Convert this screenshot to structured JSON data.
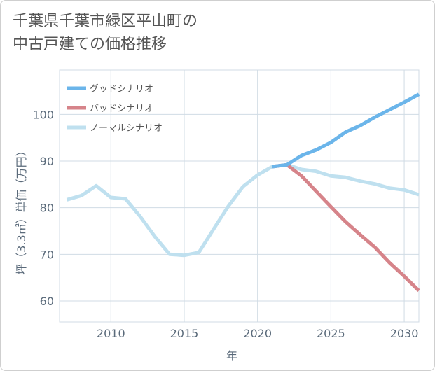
{
  "title_line1": "千葉県千葉市緑区平山町の",
  "title_line2": "中古戸建ての価格推移",
  "chart_data": {
    "type": "line",
    "xlabel": "年",
    "ylabel": "坪（3.3㎡）単価（万円）",
    "xlim": [
      2006.5,
      2031
    ],
    "ylim": [
      55.5,
      109.5
    ],
    "xticks": [
      2010,
      2015,
      2020,
      2025,
      2030
    ],
    "yticks": [
      60,
      70,
      80,
      90,
      100
    ],
    "grid": true,
    "legend_position": "top-left",
    "series": [
      {
        "name": "グッドシナリオ",
        "color": "#6bb5ea",
        "x": [
          2021,
          2022,
          2023,
          2024,
          2025,
          2026,
          2027,
          2028,
          2029,
          2030,
          2031
        ],
        "y": [
          88.8,
          89.2,
          91.2,
          92.4,
          94.0,
          96.2,
          97.6,
          99.4,
          101.0,
          102.6,
          104.3
        ]
      },
      {
        "name": "バッドシナリオ",
        "color": "#d6848a",
        "x": [
          2021,
          2022,
          2023,
          2024,
          2025,
          2026,
          2027,
          2028,
          2029,
          2030,
          2031
        ],
        "y": [
          88.8,
          89.2,
          86.8,
          83.5,
          80.2,
          77.0,
          74.2,
          71.5,
          68.2,
          65.3,
          62.2
        ]
      },
      {
        "name": "ノーマルシナリオ",
        "color": "#bfe0ef",
        "x": [
          2007,
          2008,
          2009,
          2010,
          2011,
          2012,
          2013,
          2014,
          2015,
          2016,
          2017,
          2018,
          2019,
          2020,
          2021,
          2022,
          2023,
          2024,
          2025,
          2026,
          2027,
          2028,
          2029,
          2030,
          2031
        ],
        "y": [
          81.7,
          82.6,
          84.7,
          82.2,
          81.9,
          78.1,
          73.8,
          70.0,
          69.8,
          70.4,
          75.4,
          80.3,
          84.5,
          87.0,
          88.8,
          89.2,
          88.2,
          87.8,
          86.8,
          86.5,
          85.7,
          85.1,
          84.2,
          83.8,
          82.8
        ]
      }
    ]
  }
}
